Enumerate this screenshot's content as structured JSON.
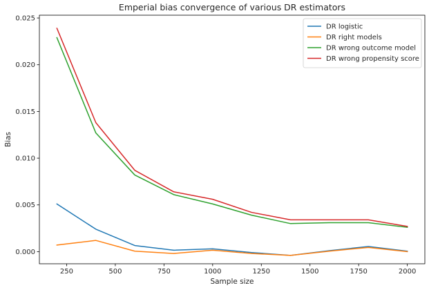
{
  "chart_data": {
    "type": "line",
    "title": "Emperial bias convergence of various DR estimators",
    "xlabel": "Sample size",
    "ylabel": "Bias",
    "xlim": [
      110,
      2090
    ],
    "ylim": [
      -0.0013,
      0.0253
    ],
    "xticks": [
      250,
      500,
      750,
      1000,
      1250,
      1500,
      1750,
      2000
    ],
    "yticks": [
      0.0,
      0.005,
      0.01,
      0.015,
      0.02,
      0.025
    ],
    "ytick_labels": [
      "0.000",
      "0.005",
      "0.010",
      "0.015",
      "0.020",
      "0.025"
    ],
    "grid": false,
    "legend_position": "upper right",
    "x": [
      200,
      400,
      600,
      800,
      1000,
      1200,
      1400,
      1600,
      1800,
      2000
    ],
    "series": [
      {
        "name": "DR logistic",
        "color": "#1f77b4",
        "values": [
          0.0051,
          0.0024,
          0.00065,
          0.00015,
          0.0003,
          -0.0001,
          -0.0004,
          0.0001,
          0.00055,
          5e-05
        ]
      },
      {
        "name": "DR right models",
        "color": "#ff7f0e",
        "values": [
          0.0007,
          0.0012,
          5e-05,
          -0.0002,
          0.00015,
          -0.0002,
          -0.0004,
          5e-05,
          0.00045,
          0.0
        ]
      },
      {
        "name": "DR wrong outcome model",
        "color": "#2ca02c",
        "values": [
          0.0229,
          0.0127,
          0.0082,
          0.0061,
          0.0051,
          0.0039,
          0.003,
          0.0031,
          0.0031,
          0.0026
        ]
      },
      {
        "name": "DR wrong propensity score",
        "color": "#d62728",
        "values": [
          0.0239,
          0.0138,
          0.0087,
          0.0064,
          0.0056,
          0.0042,
          0.0034,
          0.0034,
          0.0034,
          0.0027
        ]
      }
    ]
  }
}
